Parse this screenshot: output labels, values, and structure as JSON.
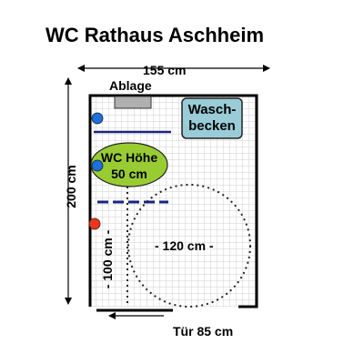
{
  "title": "WC Rathaus Aschheim",
  "dimensions": {
    "width_label": "155 cm",
    "height_label": "200 cm",
    "door_label": "Tür 85 cm",
    "turning_circle_label": "- 120 cm -",
    "side_clearance_label": "- 100 cm -"
  },
  "fixtures": {
    "shelf_label": "Ablage",
    "sink_label": "Wasch-\nbecken",
    "wc_label": "WC Höhe\n50 cm"
  },
  "colors": {
    "wc_fill": "#99cc33",
    "sink_fill": "#99ccd6",
    "grab_bar": "#1a237e",
    "blue_marker": "#1e6fd9",
    "red_marker": "#e8391e",
    "tile_line": "#cfcfcf"
  },
  "icons": [
    "arrow-icon",
    "door-arc-icon"
  ]
}
